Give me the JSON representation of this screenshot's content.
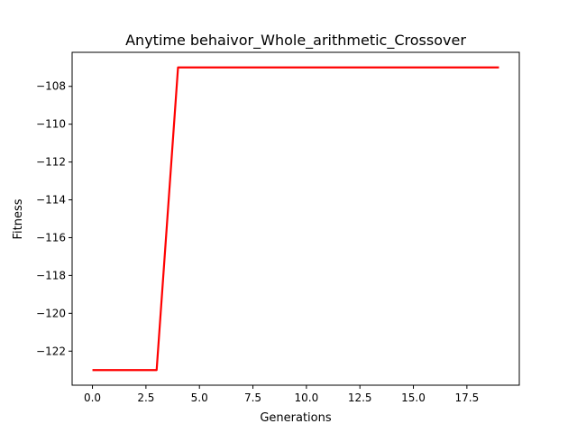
{
  "chart_data": {
    "type": "line",
    "title": "Anytime behaivor_Whole_arithmetic_Crossover",
    "xlabel": "Generations",
    "ylabel": "Fitness",
    "xlim": [
      -0.95,
      19.95
    ],
    "ylim": [
      -123.8,
      -106.2
    ],
    "x_ticks": [
      0.0,
      2.5,
      5.0,
      7.5,
      10.0,
      12.5,
      15.0,
      17.5
    ],
    "x_tick_labels": [
      "0.0",
      "2.5",
      "5.0",
      "7.5",
      "10.0",
      "12.5",
      "15.0",
      "17.5"
    ],
    "y_ticks": [
      -122,
      -120,
      -118,
      -116,
      -114,
      -112,
      -110,
      -108
    ],
    "y_tick_labels": [
      "−122",
      "−120",
      "−118",
      "−116",
      "−114",
      "−112",
      "−110",
      "−108"
    ],
    "grid": false,
    "series": [
      {
        "color": "#ff0000",
        "x": [
          0,
          1,
          2,
          3,
          4,
          5,
          6,
          7,
          8,
          9,
          10,
          11,
          12,
          13,
          14,
          15,
          16,
          17,
          18,
          19
        ],
        "y": [
          -123,
          -123,
          -123,
          -123,
          -107,
          -107,
          -107,
          -107,
          -107,
          -107,
          -107,
          -107,
          -107,
          -107,
          -107,
          -107,
          -107,
          -107,
          -107,
          -107
        ]
      }
    ]
  }
}
